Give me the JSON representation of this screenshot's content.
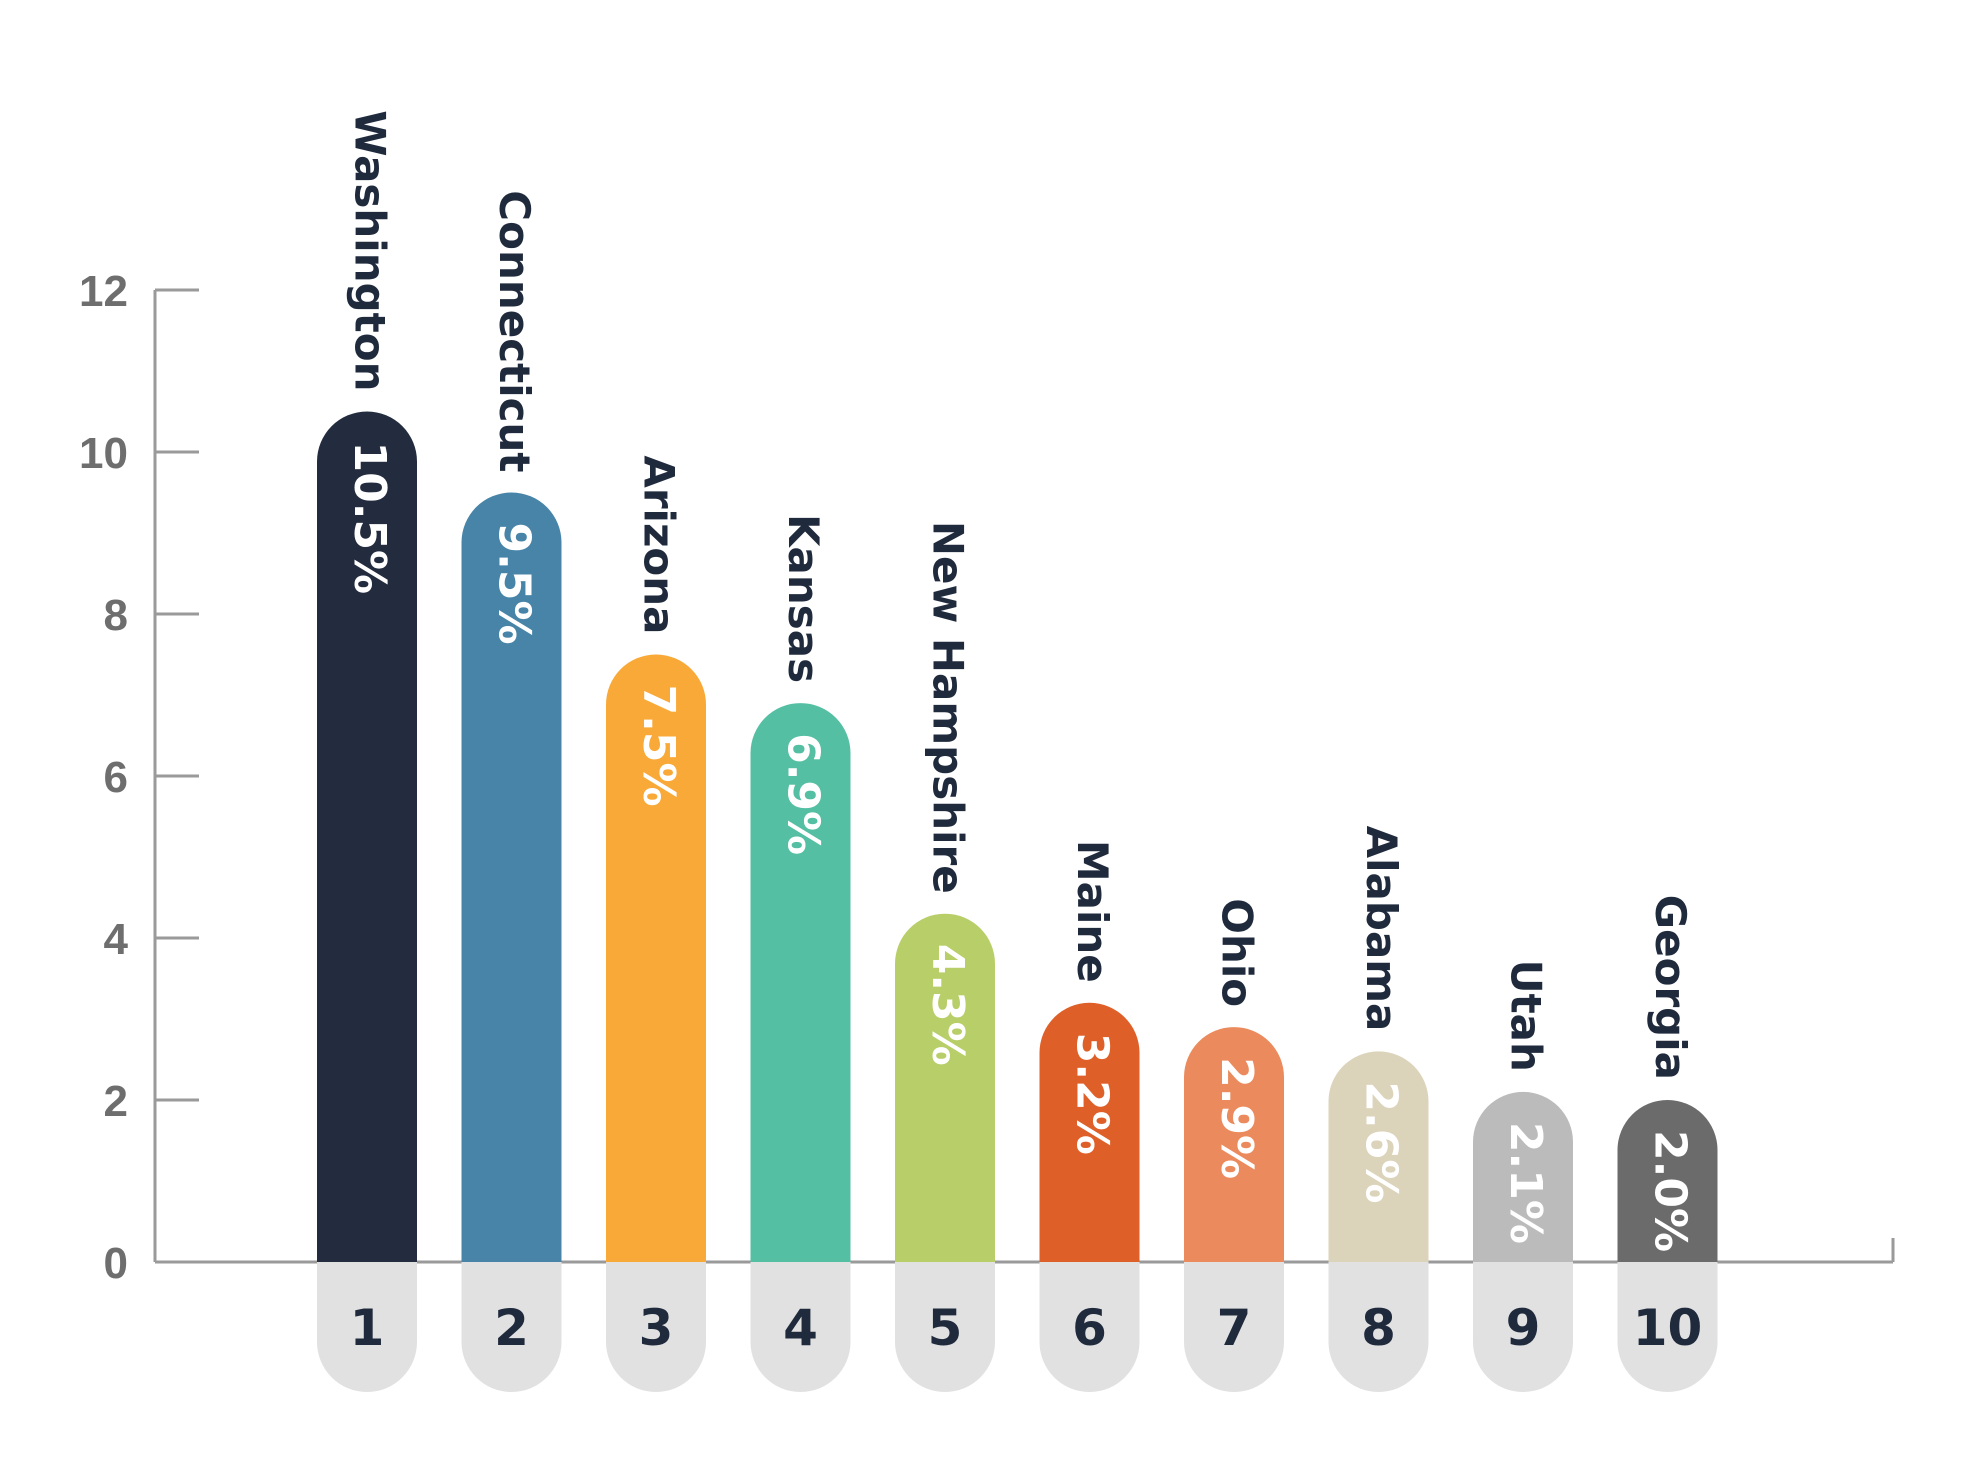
{
  "chart_data": {
    "type": "bar",
    "title": "",
    "xlabel": "",
    "ylabel": "",
    "ylim": [
      0,
      12
    ],
    "yticks": [
      0,
      2,
      4,
      6,
      8,
      10,
      12
    ],
    "grid": false,
    "categories": [
      "Washington",
      "Connecticut",
      "Arizona",
      "Kansas",
      "New Hampshire",
      "Maine",
      "Ohio",
      "Alabama",
      "Utah",
      "Georgia"
    ],
    "ranks": [
      "1",
      "2",
      "3",
      "4",
      "5",
      "6",
      "7",
      "8",
      "9",
      "10"
    ],
    "values": [
      10.5,
      9.5,
      7.5,
      6.9,
      4.3,
      3.2,
      2.9,
      2.6,
      2.1,
      2.0
    ],
    "value_labels": [
      "10.5%",
      "9.5%",
      "7.5%",
      "6.9%",
      "4.3%",
      "3.2%",
      "2.9%",
      "2.6%",
      "2.1%",
      "2.0%"
    ],
    "colors": [
      "#232c3f",
      "#4784a8",
      "#f9a937",
      "#55bfa3",
      "#b8ce68",
      "#de5f28",
      "#eb8a5c",
      "#dcd3bb",
      "#bbbbbb",
      "#6b6b6b"
    ]
  }
}
